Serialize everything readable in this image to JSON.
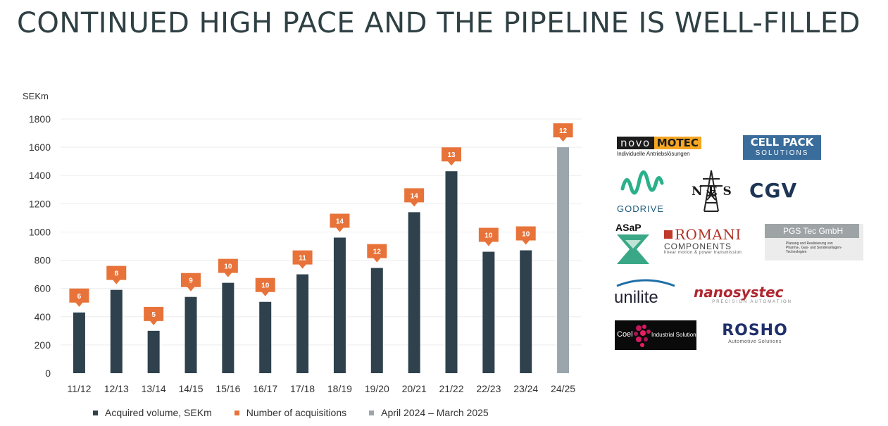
{
  "title": "CONTINUED HIGH PACE AND THE PIPELINE IS WELL-FILLED",
  "chart_data": {
    "type": "bar",
    "ylabel": "SEKm",
    "ylim": [
      0,
      1800
    ],
    "yticks": [
      0,
      200,
      400,
      600,
      800,
      1000,
      1200,
      1400,
      1600,
      1800
    ],
    "categories": [
      "11/12",
      "12/13",
      "13/14",
      "14/15",
      "15/16",
      "16/17",
      "17/18",
      "18/19",
      "19/20",
      "20/21",
      "21/22",
      "22/23",
      "23/24",
      "24/25"
    ],
    "series": [
      {
        "name": "Acquired volume, SEKm",
        "color": "#2e414c",
        "values": [
          430,
          590,
          300,
          540,
          640,
          505,
          700,
          960,
          745,
          1140,
          1430,
          860,
          870,
          1600
        ]
      },
      {
        "name": "Number of acquisitions",
        "color": "#e8733a",
        "values": [
          6,
          8,
          5,
          9,
          10,
          10,
          11,
          14,
          12,
          14,
          13,
          10,
          10,
          12
        ]
      }
    ],
    "highlight": {
      "name": "April 2024 – March 2025",
      "color": "#9aa5ac",
      "category": "24/25"
    }
  },
  "logos": {
    "novomotec": {
      "part1": "novo",
      "part2": "MOTEC",
      "sub": "Individuelle Antriebslösungen"
    },
    "cellpack": {
      "line1": "CELL PACK",
      "line2": "SOLUTIONS"
    },
    "godrive": {
      "text": "GODRIVE"
    },
    "nes": {
      "text": "NES"
    },
    "cgv": {
      "text": "CGV"
    },
    "asap": {
      "text": "ASaP"
    },
    "romani": {
      "line1": "ROMANI",
      "line2": "COMPONENTS",
      "sub": "linear motion & power transmission"
    },
    "pgs": {
      "title": "PGS Tec GmbH",
      "sub": "Planung und Realisierung von Pharma-, Gas- und Sonderanlagen-Technologien"
    },
    "unilite": {
      "text": "unilite"
    },
    "nanosystec": {
      "text": "nanosystec",
      "sub": "PRECISION AUTOMATION"
    },
    "coel": {
      "text": "Coel",
      "sub": "Industrial Solutions"
    },
    "rosho": {
      "text": "ROSHO",
      "sub": "Automotive Solutions"
    }
  }
}
